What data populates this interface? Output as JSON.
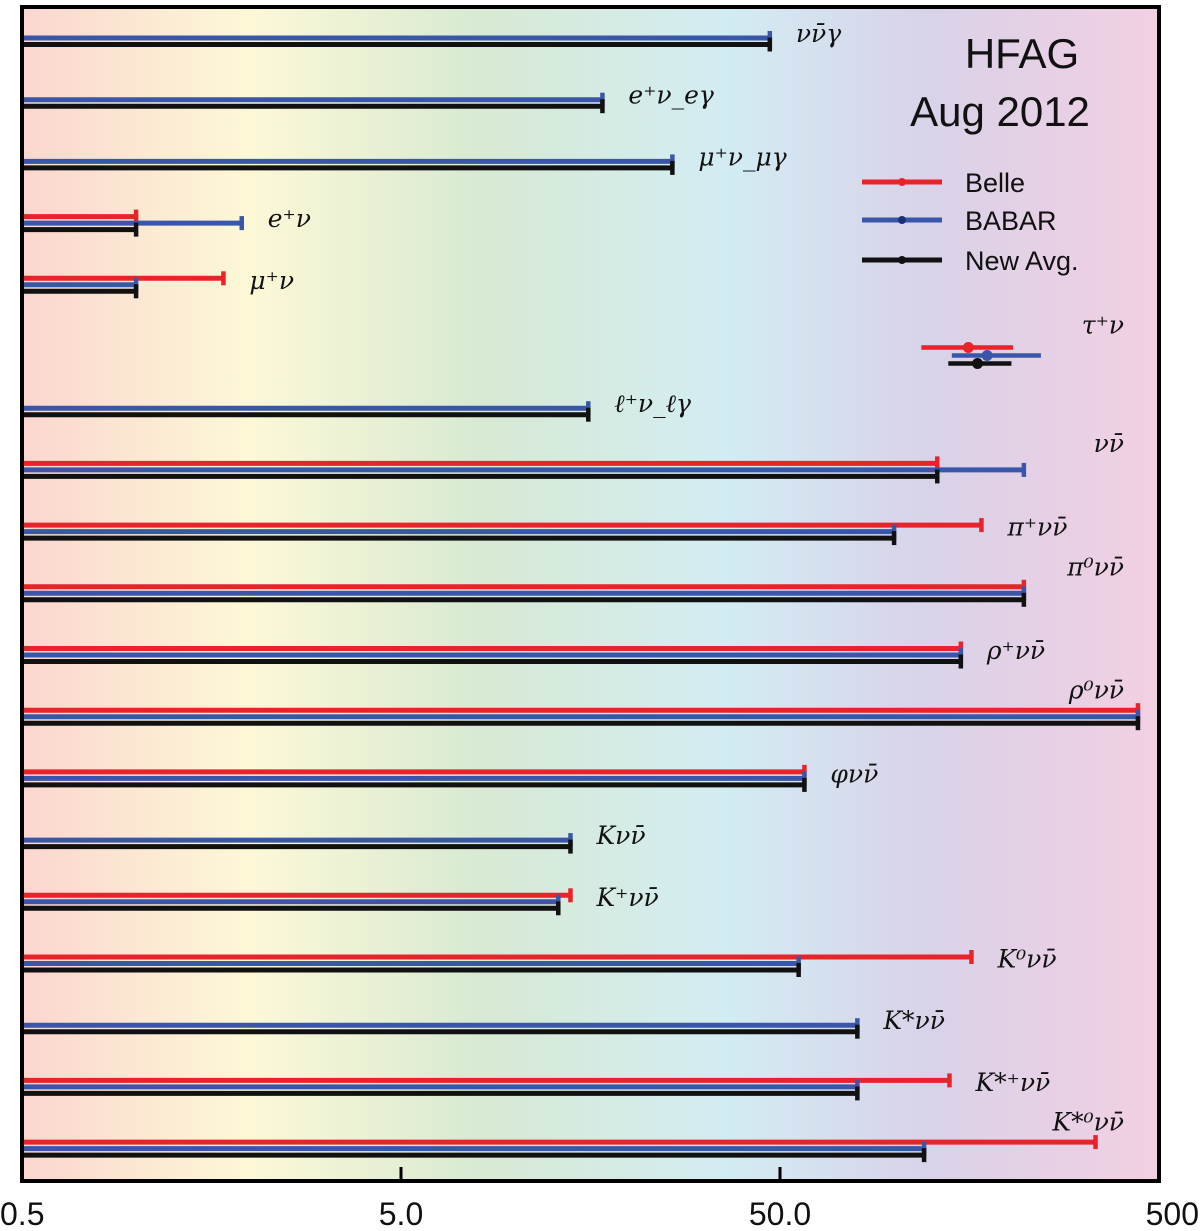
{
  "colors": {
    "belle": "#e8232a",
    "babar": "#3a56a8",
    "avg": "#111111",
    "frame": "#000000"
  },
  "chart_data": {
    "type": "bar",
    "orientation": "horizontal",
    "x_scale": "log",
    "xlim": [
      0.5,
      500
    ],
    "x_ticks": [
      {
        "value": 0.5,
        "label": "0.5"
      },
      {
        "value": 5,
        "label": "5.0"
      },
      {
        "value": 50,
        "label": "50.0"
      },
      {
        "value": 500,
        "label": "500"
      }
    ],
    "grid": false,
    "background": "rainbow gradient (red, yellow, green, cyan, purple, pink)",
    "legend": {
      "placement": "top-right",
      "title_lines": [
        "HFAG",
        "Aug 2012"
      ],
      "entries": [
        {
          "key": "belle",
          "name": "Belle"
        },
        {
          "key": "babar",
          "name": "BABAR"
        },
        {
          "key": "avg",
          "name": "New Avg."
        }
      ]
    },
    "rows": [
      {
        "label": "νν̄γ",
        "babar": 47,
        "avg": 47
      },
      {
        "label": "e⁺ν_eγ",
        "babar": 17,
        "avg": 17
      },
      {
        "label": "μ⁺ν_μγ",
        "babar": 26,
        "avg": 26
      },
      {
        "label": "e⁺ν",
        "belle": 1.0,
        "babar": 1.9,
        "avg": 1.0
      },
      {
        "label": "μ⁺ν",
        "belle": 1.7,
        "babar": 1.0,
        "avg": 1.0
      },
      {
        "label": "τ⁺ν",
        "type": "measurement",
        "belle": {
          "value": 157,
          "low": 118,
          "high": 206
        },
        "babar": {
          "value": 176,
          "low": 142,
          "high": 244
        },
        "avg": {
          "value": 166,
          "low": 139,
          "high": 204
        }
      },
      {
        "label": "ℓ⁺ν_ℓγ",
        "babar": 15.6,
        "avg": 15.6
      },
      {
        "label": "νν̄",
        "belle": 130,
        "babar": 220,
        "avg": 130
      },
      {
        "label": "π⁺νν̄",
        "belle": 170,
        "babar": 100,
        "avg": 100
      },
      {
        "label": "π⁰νν̄",
        "belle": 220,
        "babar": 220,
        "avg": 220
      },
      {
        "label": "ρ⁺νν̄",
        "belle": 150,
        "babar": 150,
        "avg": 150
      },
      {
        "label": "ρ⁰νν̄",
        "belle": 440,
        "babar": 440,
        "avg": 440
      },
      {
        "label": "φνν̄",
        "belle": 58,
        "babar": 58,
        "avg": 58
      },
      {
        "label": "Kνν̄",
        "babar": 14,
        "avg": 14
      },
      {
        "label": "K⁺νν̄",
        "belle": 14,
        "babar": 13,
        "avg": 13
      },
      {
        "label": "K⁰νν̄",
        "belle": 160,
        "babar": 56,
        "avg": 56
      },
      {
        "label": "K*νν̄",
        "babar": 80,
        "avg": 80
      },
      {
        "label": "K*⁺νν̄",
        "belle": 140,
        "babar": 80,
        "avg": 80
      },
      {
        "label": "K*⁰νν̄",
        "belle": 340,
        "babar": 120,
        "avg": 120
      }
    ]
  }
}
